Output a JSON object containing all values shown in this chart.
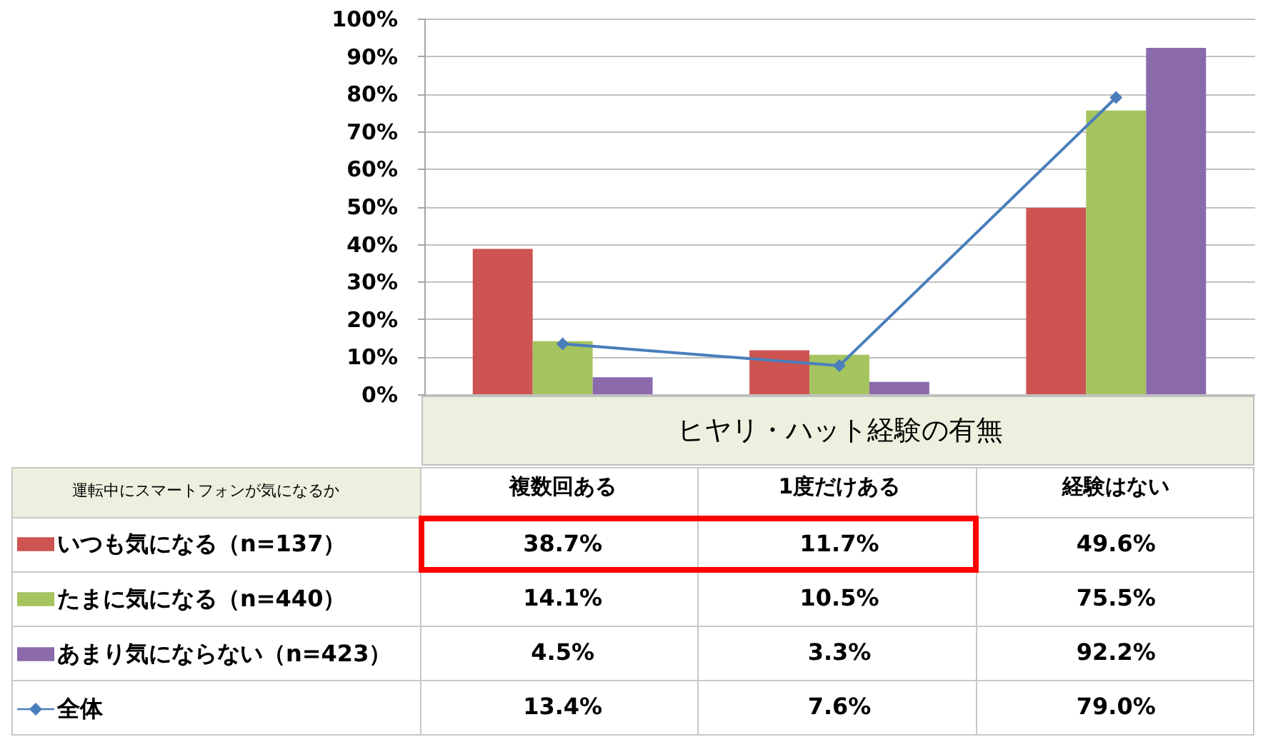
{
  "chart_data": {
    "type": "bar",
    "xlabel": "ヒヤリ・ハット経験の有無",
    "legend_title": "運転中にスマートフォンが気になるか",
    "legend": "bottom left",
    "grid": "y",
    "marker": "diamond",
    "line_style": "solid",
    "categories": [
      "複数回ある",
      "1度だけある",
      "経験はない"
    ],
    "series": [
      {
        "name": "いつも気になる（n=137）",
        "color": "#cd5451",
        "values": [
          38.7,
          11.7,
          49.6
        ],
        "value_labels": [
          "38.7%",
          "11.7%",
          "49.6%"
        ]
      },
      {
        "name": "たまに気になる（n=440）",
        "color": "#a5c35f",
        "values": [
          14.1,
          10.5,
          75.5
        ],
        "value_labels": [
          "14.1%",
          "10.5%",
          "75.5%"
        ]
      },
      {
        "name": "あまり気にならない（n=423）",
        "color": "#8b6aac",
        "values": [
          4.5,
          3.3,
          92.2
        ],
        "value_labels": [
          "4.5%",
          "3.3%",
          "92.2%"
        ]
      },
      {
        "name": "全体",
        "type": "line",
        "color": "#4a7ebb",
        "values": [
          13.4,
          7.6,
          79.0
        ],
        "value_labels": [
          "13.4%",
          "7.6%",
          "79.0%"
        ]
      }
    ],
    "ylim": [
      0,
      100
    ],
    "yticks": [
      {
        "value": 0,
        "label": "0%"
      },
      {
        "value": 10,
        "label": "10%"
      },
      {
        "value": 20,
        "label": "20%"
      },
      {
        "value": 30,
        "label": "30%"
      },
      {
        "value": 40,
        "label": "40%"
      },
      {
        "value": 50,
        "label": "50%"
      },
      {
        "value": 60,
        "label": "60%"
      },
      {
        "value": 70,
        "label": "70%"
      },
      {
        "value": 80,
        "label": "80%"
      },
      {
        "value": 90,
        "label": "90%"
      },
      {
        "value": 100,
        "label": "100%"
      }
    ]
  }
}
